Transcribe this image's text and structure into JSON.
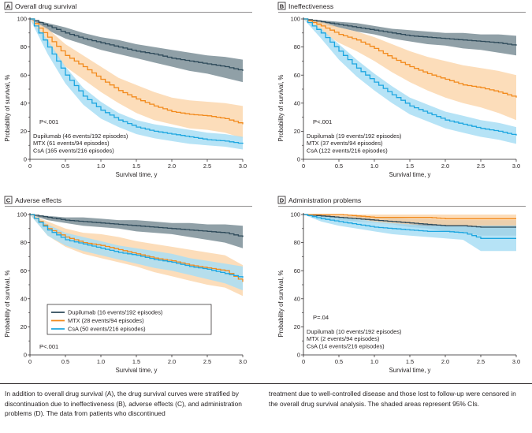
{
  "colors": {
    "dupilumab": "#2e4a5a",
    "mtx": "#f28a1c",
    "csa": "#1da6e0",
    "dupilumab_band": "#7d8f98",
    "mtx_band": "#fbd7ae",
    "csa_band": "#a9def5"
  },
  "caption": {
    "left": "In addition to overall drug survival (A), the drug survival curves were stratified by discontinuation due to ineffectiveness (B), adverse effects (C), and administration problems (D). The data from patients who discontinued",
    "right": "treatment due to well-controlled disease and those lost to follow-up were censored in the overall drug survival analysis. The shaded areas represent 95% CIs."
  },
  "chart_data": [
    {
      "panel": "A",
      "title": "Overall drug survival",
      "type": "line",
      "xlabel": "Survival time, y",
      "ylabel": "Probability of survival, %",
      "xlim": [
        0,
        3
      ],
      "ylim": [
        0,
        100
      ],
      "xticks": [
        "0",
        "0.5",
        "1.0",
        "1.5",
        "2.0",
        "2.5",
        "3.0"
      ],
      "yticks": [
        "0",
        "20",
        "40",
        "60",
        "80",
        "100"
      ],
      "pvalue": "P<.001",
      "legend_style": "text",
      "x": [
        0,
        0.25,
        0.5,
        0.75,
        1.0,
        1.25,
        1.5,
        1.75,
        2.0,
        2.25,
        2.5,
        2.75,
        3.0
      ],
      "series": [
        {
          "name": "Dupilumab (46 events/192 episodes)",
          "key": "dupilumab",
          "values": [
            100,
            95,
            90,
            86,
            83,
            80,
            77,
            75,
            72,
            70,
            68,
            66,
            63
          ],
          "lower": [
            100,
            92,
            86,
            82,
            78,
            75,
            72,
            69,
            66,
            63,
            61,
            58,
            55
          ],
          "upper": [
            100,
            97,
            94,
            90,
            87,
            85,
            82,
            80,
            78,
            76,
            74,
            73,
            71
          ]
        },
        {
          "name": "MTX (61 events/94 episodes)",
          "key": "mtx",
          "values": [
            100,
            87,
            74,
            66,
            57,
            49,
            43,
            38,
            34,
            32,
            31,
            29,
            25
          ],
          "lower": [
            100,
            81,
            66,
            57,
            48,
            40,
            33,
            28,
            25,
            22,
            21,
            19,
            15
          ],
          "upper": [
            100,
            93,
            82,
            74,
            66,
            58,
            53,
            48,
            44,
            42,
            41,
            40,
            38
          ]
        },
        {
          "name": "CsA (165 events/216 episodes)",
          "key": "csa",
          "values": [
            100,
            80,
            60,
            45,
            35,
            28,
            23,
            20,
            18,
            16,
            14,
            13,
            11
          ],
          "lower": [
            100,
            75,
            54,
            39,
            29,
            23,
            18,
            15,
            13,
            11,
            10,
            9,
            7
          ],
          "upper": [
            100,
            85,
            66,
            51,
            41,
            33,
            28,
            25,
            23,
            21,
            19,
            18,
            16
          ]
        }
      ]
    },
    {
      "panel": "B",
      "title": "Ineffectiveness",
      "type": "line",
      "xlabel": "Survival time, y",
      "ylabel": "Probability of survival, %",
      "xlim": [
        0,
        3
      ],
      "ylim": [
        0,
        100
      ],
      "xticks": [
        "0",
        "0.5",
        "1.0",
        "1.5",
        "2.0",
        "2.5",
        "3.0"
      ],
      "yticks": [
        "0",
        "20",
        "40",
        "60",
        "80",
        "100"
      ],
      "pvalue": "P<.001",
      "legend_style": "text",
      "x": [
        0,
        0.25,
        0.5,
        0.75,
        1.0,
        1.25,
        1.5,
        1.75,
        2.0,
        2.25,
        2.5,
        2.75,
        3.0
      ],
      "series": [
        {
          "name": "Dupilumab (19 events/192 episodes)",
          "key": "dupilumab",
          "values": [
            100,
            98,
            96,
            94,
            92,
            90,
            88,
            87,
            86,
            85,
            84,
            83,
            81
          ],
          "lower": [
            100,
            96,
            94,
            91,
            89,
            86,
            84,
            82,
            81,
            79,
            78,
            76,
            74
          ],
          "upper": [
            100,
            99,
            98,
            97,
            95,
            93,
            92,
            91,
            90,
            90,
            89,
            89,
            88
          ]
        },
        {
          "name": "MTX (37 events/94 episodes)",
          "key": "mtx",
          "values": [
            100,
            95,
            89,
            85,
            79,
            72,
            66,
            61,
            57,
            53,
            51,
            48,
            44
          ],
          "lower": [
            100,
            91,
            83,
            77,
            70,
            62,
            55,
            49,
            44,
            40,
            37,
            33,
            28
          ],
          "upper": [
            100,
            98,
            94,
            91,
            87,
            82,
            77,
            73,
            70,
            67,
            65,
            63,
            60
          ]
        },
        {
          "name": "CsA (122 events/216 episodes)",
          "key": "csa",
          "values": [
            100,
            90,
            77,
            65,
            55,
            46,
            38,
            33,
            28,
            25,
            22,
            20,
            17
          ],
          "lower": [
            100,
            86,
            71,
            59,
            49,
            40,
            32,
            27,
            22,
            19,
            16,
            14,
            11
          ],
          "upper": [
            100,
            93,
            82,
            71,
            61,
            52,
            44,
            39,
            34,
            31,
            28,
            26,
            23
          ]
        }
      ]
    },
    {
      "panel": "C",
      "title": "Adverse effects",
      "type": "line",
      "xlabel": "Survival time, y",
      "ylabel": "Probability of survival, %",
      "xlim": [
        0,
        3
      ],
      "ylim": [
        0,
        100
      ],
      "xticks": [
        "0",
        "0.5",
        "1.0",
        "1.5",
        "2.0",
        "2.5",
        "3.0"
      ],
      "yticks": [
        "0",
        "20",
        "40",
        "60",
        "80",
        "100"
      ],
      "pvalue": "P<.001",
      "legend_style": "boxed",
      "x": [
        0,
        0.25,
        0.5,
        0.75,
        1.0,
        1.25,
        1.5,
        1.75,
        2.0,
        2.25,
        2.5,
        2.75,
        3.0
      ],
      "series": [
        {
          "name": "Dupilumab (16 events/192 episodes)",
          "key": "dupilumab",
          "values": [
            100,
            98,
            96,
            95,
            94,
            93,
            92,
            91,
            90,
            89,
            88,
            87,
            84
          ],
          "lower": [
            100,
            96,
            94,
            92,
            91,
            90,
            88,
            87,
            86,
            84,
            82,
            80,
            76
          ],
          "upper": [
            100,
            99,
            98,
            98,
            97,
            96,
            96,
            95,
            94,
            94,
            93,
            93,
            92
          ]
        },
        {
          "name": "MTX (28 events/94 episodes)",
          "key": "mtx",
          "values": [
            100,
            90,
            84,
            80,
            78,
            75,
            72,
            69,
            67,
            64,
            62,
            60,
            52
          ],
          "lower": [
            100,
            85,
            77,
            72,
            69,
            66,
            63,
            59,
            56,
            53,
            50,
            48,
            42
          ],
          "upper": [
            100,
            95,
            90,
            87,
            86,
            84,
            81,
            79,
            77,
            75,
            73,
            71,
            64
          ]
        },
        {
          "name": "CsA (50 events/216 episodes)",
          "key": "csa",
          "values": [
            100,
            89,
            82,
            79,
            76,
            73,
            71,
            68,
            66,
            63,
            61,
            58,
            55
          ],
          "lower": [
            100,
            85,
            78,
            74,
            71,
            68,
            65,
            62,
            60,
            57,
            54,
            51,
            46
          ],
          "upper": [
            100,
            93,
            87,
            84,
            81,
            78,
            76,
            74,
            72,
            69,
            67,
            65,
            63
          ]
        }
      ]
    },
    {
      "panel": "D",
      "title": "Administration problems",
      "type": "line",
      "xlabel": "Survival time, y",
      "ylabel": "Probability of survival, %",
      "xlim": [
        0,
        3
      ],
      "ylim": [
        0,
        100
      ],
      "xticks": [
        "0",
        "0.5",
        "1.0",
        "1.5",
        "2.0",
        "2.5",
        "3.0"
      ],
      "yticks": [
        "0",
        "20",
        "40",
        "60",
        "80",
        "100"
      ],
      "pvalue": "P=.04",
      "legend_style": "text",
      "x": [
        0,
        0.25,
        0.5,
        0.75,
        1.0,
        1.25,
        1.5,
        1.75,
        2.0,
        2.25,
        2.5,
        2.75,
        3.0
      ],
      "series": [
        {
          "name": "Dupilumab (10 events/192 episodes)",
          "key": "dupilumab",
          "values": [
            100,
            99,
            98,
            97,
            96,
            95,
            94,
            93,
            92,
            92,
            91,
            91,
            91
          ],
          "lower": [
            100,
            98,
            96,
            95,
            94,
            93,
            91,
            90,
            88,
            87,
            85,
            85,
            85
          ],
          "upper": [
            100,
            100,
            99,
            99,
            98,
            98,
            97,
            97,
            96,
            96,
            96,
            96,
            96
          ]
        },
        {
          "name": "MTX (2 events/94 episodes)",
          "key": "mtx",
          "values": [
            100,
            100,
            100,
            99,
            98,
            98,
            98,
            98,
            97,
            97,
            97,
            97,
            97
          ],
          "lower": [
            100,
            99,
            98,
            96,
            94,
            93,
            93,
            93,
            92,
            92,
            92,
            92,
            92
          ],
          "upper": [
            100,
            100,
            100,
            100,
            100,
            100,
            100,
            100,
            100,
            100,
            100,
            100,
            100
          ]
        },
        {
          "name": "CsA (14 events/216 episodes)",
          "key": "csa",
          "values": [
            100,
            97,
            95,
            93,
            91,
            90,
            89,
            88,
            88,
            87,
            83,
            83,
            83
          ],
          "lower": [
            100,
            95,
            92,
            90,
            88,
            86,
            85,
            84,
            83,
            82,
            74,
            74,
            74
          ],
          "upper": [
            100,
            99,
            98,
            97,
            95,
            94,
            93,
            92,
            92,
            92,
            92,
            92,
            92
          ]
        }
      ]
    }
  ]
}
